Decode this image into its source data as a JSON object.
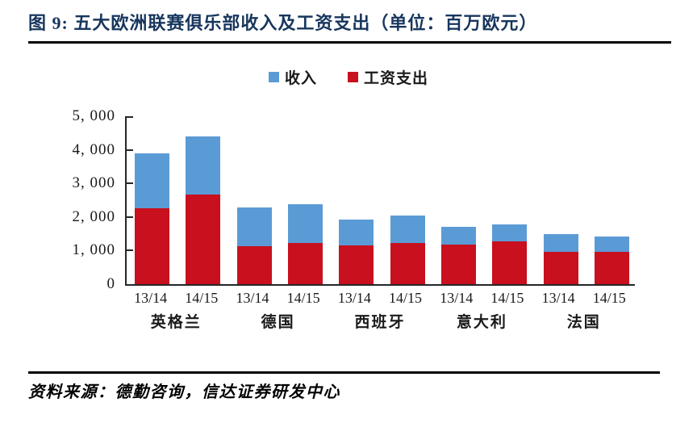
{
  "page": {
    "title": "图 9: 五大欧洲联赛俱乐部收入及工资支出（单位：百万欧元）",
    "title_color": "#17365D",
    "source_text": "资料来源：德勤咨询，信达证券研发中心"
  },
  "colors": {
    "revenue_blue": "#5B9BD5",
    "wage_red": "#C8101E",
    "axis": "#262626",
    "rule": "#000000"
  },
  "chart_data": {
    "type": "bar",
    "structure": "overlay-columns: full bar height = 收入 (blue), front bottom segment = 工资支出 (red)",
    "title": "五大欧洲联赛俱乐部收入及工资支出",
    "unit": "百万欧元",
    "grid": false,
    "legend_position": "top-center",
    "ylim": [
      0,
      5000
    ],
    "ytick_interval": 1000,
    "yticks": [
      {
        "v": 0,
        "label": "0"
      },
      {
        "v": 1000,
        "label": "1, 000"
      },
      {
        "v": 2000,
        "label": "2, 000"
      },
      {
        "v": 3000,
        "label": "3, 000"
      },
      {
        "v": 4000,
        "label": "4, 000"
      },
      {
        "v": 5000,
        "label": "5, 000"
      }
    ],
    "categories": [
      "13/14",
      "14/15",
      "13/14",
      "14/15",
      "13/14",
      "14/15",
      "13/14",
      "14/15",
      "13/14",
      "14/15"
    ],
    "groups": [
      {
        "label": "英格兰"
      },
      {
        "label": "德国"
      },
      {
        "label": "西班牙"
      },
      {
        "label": "意大利"
      },
      {
        "label": "法国"
      }
    ],
    "series": [
      {
        "name": "收入",
        "color": "#5B9BD5",
        "values": [
          3900,
          4400,
          2280,
          2390,
          1930,
          2050,
          1700,
          1790,
          1500,
          1420
        ]
      },
      {
        "name": "工资支出",
        "color": "#C8101E",
        "values": [
          2270,
          2660,
          1130,
          1220,
          1150,
          1220,
          1180,
          1270,
          950,
          950
        ]
      }
    ]
  }
}
